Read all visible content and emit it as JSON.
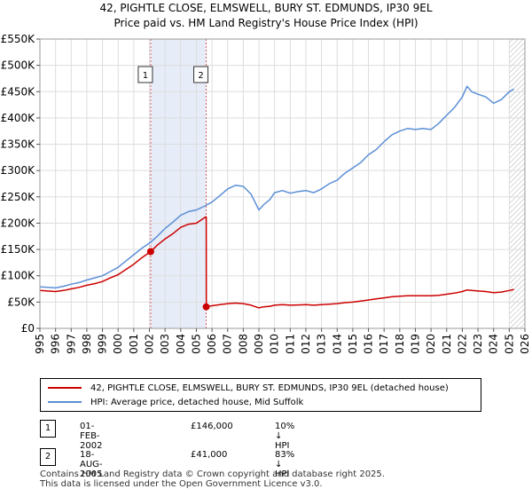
{
  "title_line1": "42, PIGHTLE CLOSE, ELMSWELL, BURY ST. EDMUNDS, IP30 9EL",
  "title_line2": "Price paid vs. HM Land Registry's House Price Index (HPI)",
  "chart_data": {
    "type": "line",
    "x_range": [
      1995,
      2026
    ],
    "ylim": [
      0,
      550000
    ],
    "y_ticks": [
      0,
      50000,
      100000,
      150000,
      200000,
      250000,
      300000,
      350000,
      400000,
      450000,
      500000,
      550000
    ],
    "y_tick_labels": [
      "£0",
      "£50K",
      "£100K",
      "£150K",
      "£200K",
      "£250K",
      "£300K",
      "£350K",
      "£400K",
      "£450K",
      "£500K",
      "£550K"
    ],
    "x_ticks": [
      1995,
      1996,
      1997,
      1998,
      1999,
      2000,
      2001,
      2002,
      2003,
      2004,
      2005,
      2006,
      2007,
      2008,
      2009,
      2010,
      2011,
      2012,
      2013,
      2014,
      2015,
      2016,
      2017,
      2018,
      2019,
      2020,
      2021,
      2022,
      2023,
      2024,
      2025,
      2026
    ],
    "grid": true,
    "colors": {
      "property": "#cc0000",
      "hpi": "#5b8fd6",
      "shade": "#e6ecf8",
      "sale_line": "#d65c5c"
    },
    "series": [
      {
        "name": "hpi",
        "x": [
          1995.0,
          1995.5,
          1996.0,
          1996.5,
          1997.0,
          1997.5,
          1998.0,
          1998.5,
          1999.0,
          1999.5,
          2000.0,
          2000.5,
          2001.0,
          2001.5,
          2002.0,
          2002.5,
          2003.0,
          2003.5,
          2004.0,
          2004.5,
          2005.0,
          2005.5,
          2006.0,
          2006.5,
          2007.0,
          2007.5,
          2008.0,
          2008.5,
          2009.0,
          2009.3,
          2009.7,
          2010.0,
          2010.5,
          2011.0,
          2011.5,
          2012.0,
          2012.5,
          2013.0,
          2013.5,
          2014.0,
          2014.5,
          2015.0,
          2015.5,
          2016.0,
          2016.5,
          2017.0,
          2017.5,
          2018.0,
          2018.5,
          2019.0,
          2019.5,
          2020.0,
          2020.5,
          2021.0,
          2021.5,
          2022.0,
          2022.3,
          2022.6,
          2023.0,
          2023.5,
          2024.0,
          2024.5,
          2025.0,
          2025.3
        ],
        "y": [
          79000,
          78000,
          77000,
          80000,
          84000,
          87000,
          92000,
          96000,
          100000,
          108000,
          116000,
          128000,
          140000,
          152000,
          162000,
          175000,
          190000,
          202000,
          215000,
          222000,
          225000,
          232000,
          240000,
          252000,
          265000,
          272000,
          270000,
          255000,
          225000,
          235000,
          245000,
          258000,
          262000,
          257000,
          260000,
          262000,
          258000,
          265000,
          275000,
          282000,
          295000,
          305000,
          315000,
          330000,
          340000,
          355000,
          368000,
          375000,
          380000,
          378000,
          380000,
          378000,
          390000,
          405000,
          420000,
          440000,
          460000,
          450000,
          445000,
          440000,
          428000,
          435000,
          450000,
          455000
        ]
      },
      {
        "name": "property",
        "x": [
          1995.0,
          1995.5,
          1996.0,
          1996.5,
          1997.0,
          1997.5,
          1998.0,
          1998.5,
          1999.0,
          1999.5,
          2000.0,
          2000.5,
          2001.0,
          2001.5,
          2002.08,
          2002.5,
          2003.0,
          2003.5,
          2004.0,
          2004.5,
          2005.0,
          2005.5,
          2005.63,
          2005.64,
          2006.0,
          2006.5,
          2007.0,
          2007.5,
          2008.0,
          2008.5,
          2009.0,
          2009.3,
          2009.7,
          2010.0,
          2010.5,
          2011.0,
          2011.5,
          2012.0,
          2012.5,
          2013.0,
          2013.5,
          2014.0,
          2014.5,
          2015.0,
          2015.5,
          2016.0,
          2016.5,
          2017.0,
          2017.5,
          2018.0,
          2018.5,
          2019.0,
          2019.5,
          2020.0,
          2020.5,
          2021.0,
          2021.5,
          2022.0,
          2022.3,
          2022.6,
          2023.0,
          2023.5,
          2024.0,
          2024.5,
          2025.0,
          2025.3
        ],
        "y": [
          72000,
          71000,
          70000,
          72000,
          75000,
          78000,
          82000,
          85000,
          89000,
          96000,
          102000,
          112000,
          122000,
          134000,
          146000,
          158000,
          170000,
          180000,
          192000,
          198000,
          200000,
          210000,
          212000,
          41000,
          43000,
          45000,
          47000,
          48000,
          47000,
          44000,
          39000,
          41000,
          42000,
          44000,
          45000,
          44000,
          44500,
          45000,
          44000,
          45000,
          46000,
          47000,
          49000,
          50000,
          52000,
          54000,
          56000,
          58000,
          60000,
          61000,
          62000,
          62000,
          62000,
          62000,
          63000,
          65000,
          67000,
          70000,
          73000,
          72000,
          71000,
          70000,
          68000,
          69000,
          72000,
          74000
        ]
      }
    ],
    "sales": [
      {
        "id": "1",
        "x": 2002.08,
        "y": 146000
      },
      {
        "id": "2",
        "x": 2005.63,
        "y": 41000
      }
    ],
    "future_hatch_from": 2025.0
  },
  "legend": {
    "property_label": "42, PIGHTLE CLOSE, ELMSWELL, BURY ST. EDMUNDS, IP30 9EL (detached house)",
    "hpi_label": "HPI: Average price, detached house, Mid Suffolk"
  },
  "transactions": [
    {
      "id": "1",
      "date": "01-FEB-2002",
      "price": "£146,000",
      "hpi": "10% ↓ HPI"
    },
    {
      "id": "2",
      "date": "18-AUG-2005",
      "price": "£41,000",
      "hpi": "83% ↓ HPI"
    }
  ],
  "footer_line1": "Contains HM Land Registry data © Crown copyright and database right 2025.",
  "footer_line2": "This data is licensed under the Open Government Licence v3.0."
}
